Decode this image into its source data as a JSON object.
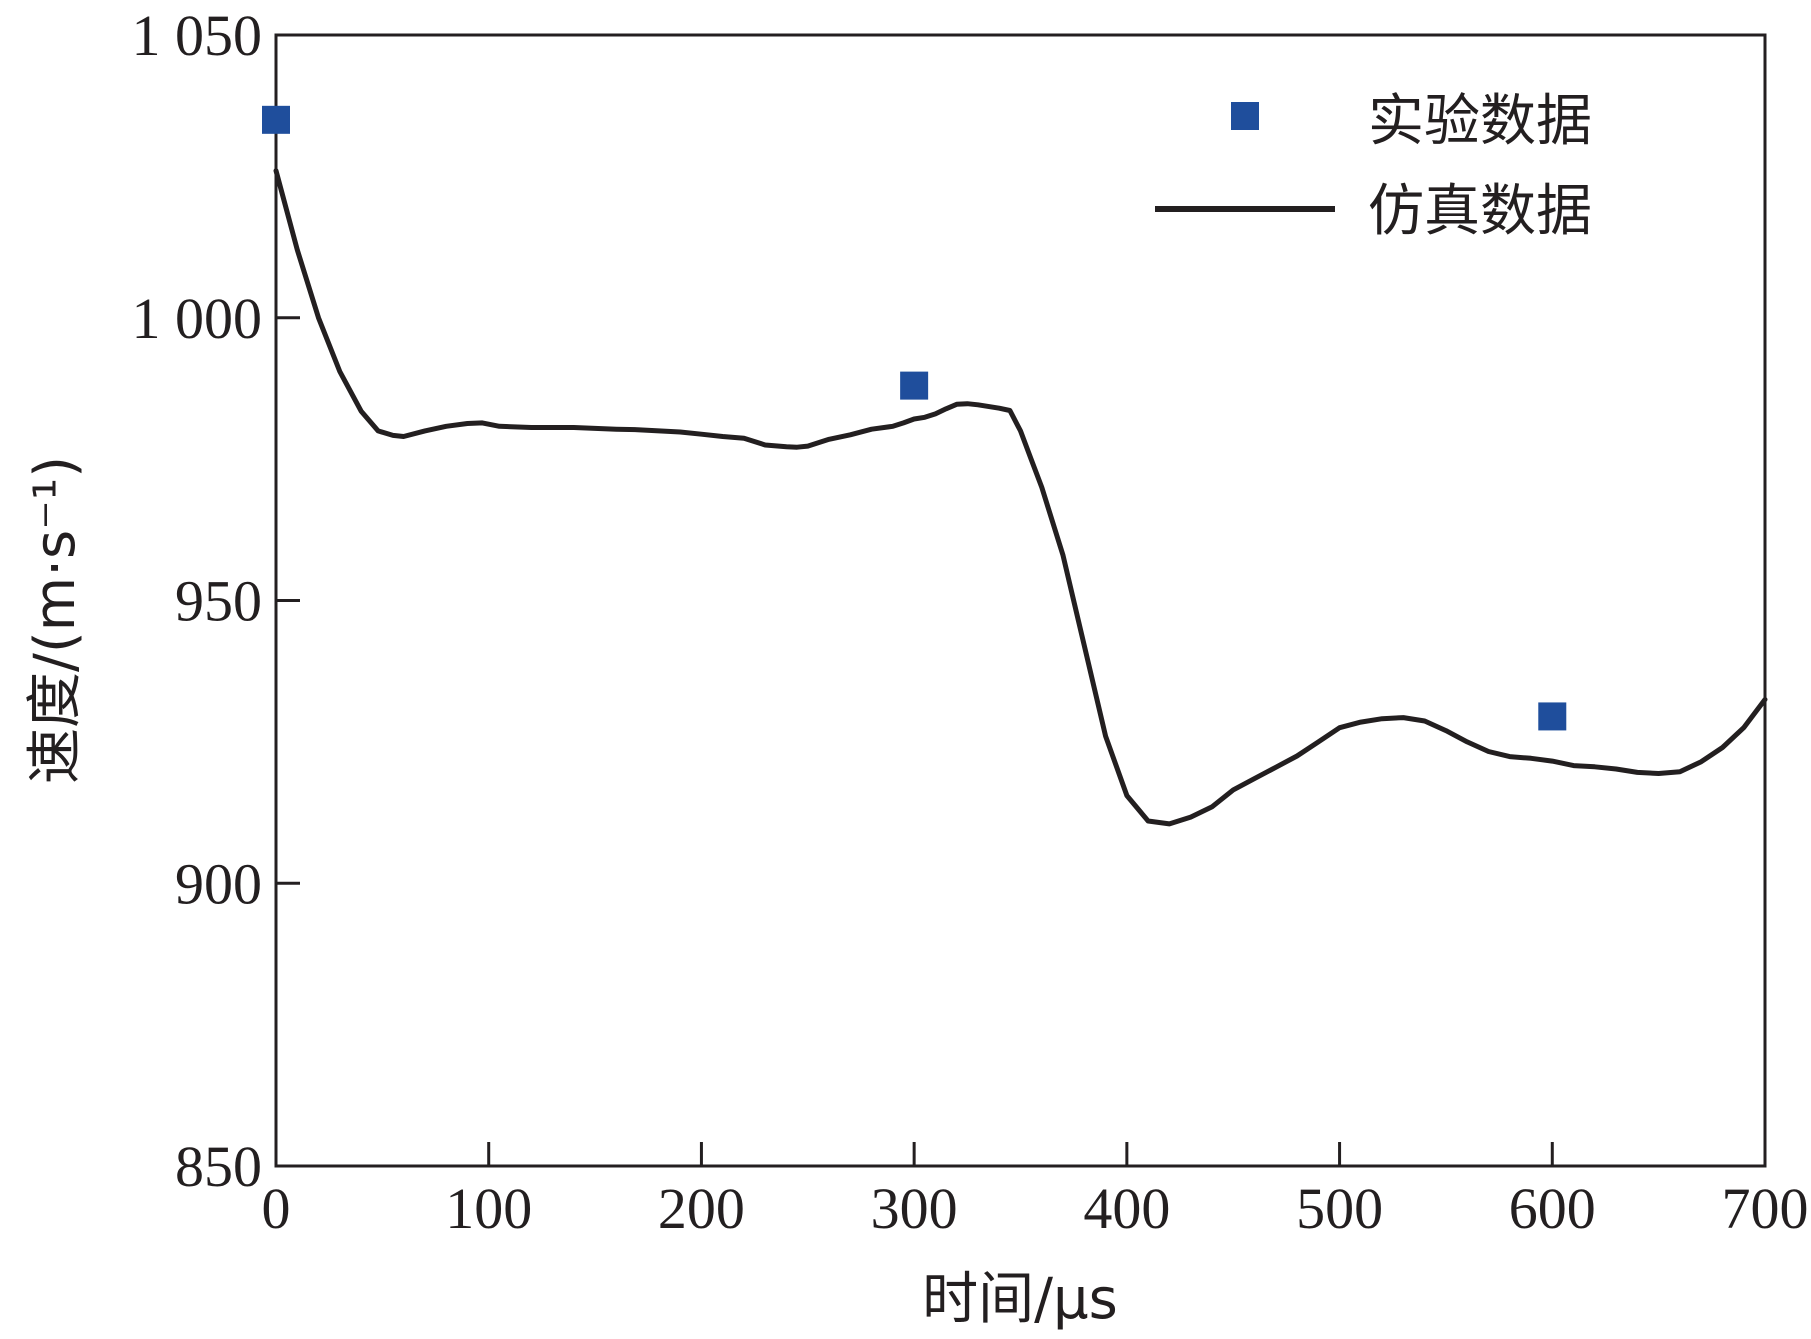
{
  "chart_data": {
    "type": "line",
    "title": "",
    "xlabel": "时间/μs",
    "ylabel": "速度/(m·s⁻¹)",
    "xlim": [
      0,
      700
    ],
    "ylim": [
      850,
      1050
    ],
    "x_ticks": [
      0,
      100,
      200,
      300,
      400,
      500,
      600,
      700
    ],
    "x_tick_labels": [
      "0",
      "100",
      "200",
      "300",
      "400",
      "500",
      "600",
      "700"
    ],
    "y_ticks": [
      850,
      900,
      950,
      1000,
      1050
    ],
    "y_tick_labels": [
      "850",
      "900",
      "950",
      "1 000",
      "1 050"
    ],
    "grid": false,
    "legend_position": "top-right",
    "series": [
      {
        "name": "实验数据",
        "kind": "scatter",
        "marker": "square",
        "color": "#1f4e9c",
        "x": [
          0,
          300,
          600
        ],
        "y": [
          1035,
          988,
          929.5
        ]
      },
      {
        "name": "仿真数据",
        "kind": "line",
        "color": "#231f20",
        "x": [
          0,
          10,
          20,
          30,
          40,
          48,
          55,
          60,
          70,
          80,
          90,
          97,
          105,
          120,
          140,
          160,
          170,
          180,
          190,
          200,
          210,
          220,
          230,
          240,
          245,
          250,
          260,
          270,
          280,
          290,
          295,
          300,
          305,
          310,
          315,
          320,
          325,
          330,
          340,
          345,
          350,
          355,
          360,
          370,
          380,
          390,
          400,
          410,
          420,
          430,
          440,
          450,
          460,
          470,
          480,
          490,
          500,
          510,
          520,
          530,
          540,
          550,
          560,
          570,
          580,
          590,
          600,
          610,
          620,
          630,
          640,
          650,
          660,
          670,
          680,
          690,
          700
        ],
        "y": [
          1026,
          1012,
          1000,
          990.5,
          983.5,
          980,
          979.2,
          979,
          980,
          980.8,
          981.3,
          981.4,
          980.8,
          980.6,
          980.6,
          980.3,
          980.2,
          980,
          979.8,
          979.4,
          979,
          978.7,
          977.5,
          977.2,
          977.1,
          977.3,
          978.5,
          979.3,
          980.3,
          980.8,
          981.4,
          982.1,
          982.4,
          983,
          983.9,
          984.7,
          984.8,
          984.6,
          984,
          983.6,
          980,
          975,
          970,
          958,
          942,
          926,
          915.5,
          911,
          910.5,
          911.7,
          913.5,
          916.5,
          918.5,
          920.5,
          922.5,
          925,
          927.5,
          928.5,
          929.1,
          929.3,
          928.7,
          927,
          925,
          923.3,
          922.4,
          922.1,
          921.6,
          920.8,
          920.6,
          920.2,
          919.6,
          919.4,
          919.7,
          921.5,
          924,
          927.5,
          932.5
        ]
      }
    ]
  }
}
